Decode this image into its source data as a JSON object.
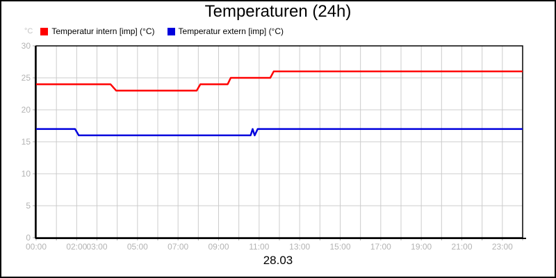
{
  "page": {
    "title": "Temperaturen (24h)",
    "date_label": "28.03"
  },
  "legend": {
    "unit_label": "°C",
    "items": [
      {
        "label": "Temperatur intern [imp] (°C)",
        "color": "#ff0000"
      },
      {
        "label": "Temperatur extern [imp] (°C)",
        "color": "#0000dd"
      }
    ]
  },
  "chart_data": {
    "type": "line",
    "title": "Temperaturen (24h)",
    "xlabel": "28.03",
    "ylabel": "°C",
    "xlim": [
      0,
      24
    ],
    "ylim": [
      0,
      30
    ],
    "x_unit": "hours",
    "grid": true,
    "legend_position": "top-left",
    "grid_color": "#cccccc",
    "tick_label_color": "#b3b3b3",
    "axis_color": "#000000",
    "y_ticks": [
      0,
      5,
      10,
      15,
      20,
      25,
      30
    ],
    "x_ticks": [
      {
        "hour": 0,
        "label": "00:00"
      },
      {
        "hour": 2,
        "label": "02:00"
      },
      {
        "hour": 3,
        "label": "03:00"
      },
      {
        "hour": 5,
        "label": "05:00"
      },
      {
        "hour": 7,
        "label": "07:00"
      },
      {
        "hour": 9,
        "label": "09:00"
      },
      {
        "hour": 11,
        "label": "11:00"
      },
      {
        "hour": 13,
        "label": "13:00"
      },
      {
        "hour": 15,
        "label": "15:00"
      },
      {
        "hour": 17,
        "label": "17:00"
      },
      {
        "hour": 19,
        "label": "19:00"
      },
      {
        "hour": 21,
        "label": "21:00"
      },
      {
        "hour": 23,
        "label": "23:00"
      }
    ],
    "series": [
      {
        "name": "Temperatur intern [imp] (°C)",
        "color": "#ff0000",
        "points": [
          [
            0,
            24
          ],
          [
            3.67,
            24
          ],
          [
            3.95,
            23
          ],
          [
            7.92,
            23
          ],
          [
            8.1,
            24
          ],
          [
            9.45,
            24
          ],
          [
            9.6,
            25
          ],
          [
            11.55,
            25
          ],
          [
            11.72,
            26
          ],
          [
            24,
            26
          ]
        ]
      },
      {
        "name": "Temperatur extern [imp] (°C)",
        "color": "#0000dd",
        "points": [
          [
            0,
            17
          ],
          [
            1.92,
            17
          ],
          [
            2.1,
            16
          ],
          [
            10.58,
            16
          ],
          [
            10.68,
            17
          ],
          [
            10.78,
            16
          ],
          [
            10.93,
            17
          ],
          [
            24,
            17
          ]
        ]
      }
    ]
  }
}
